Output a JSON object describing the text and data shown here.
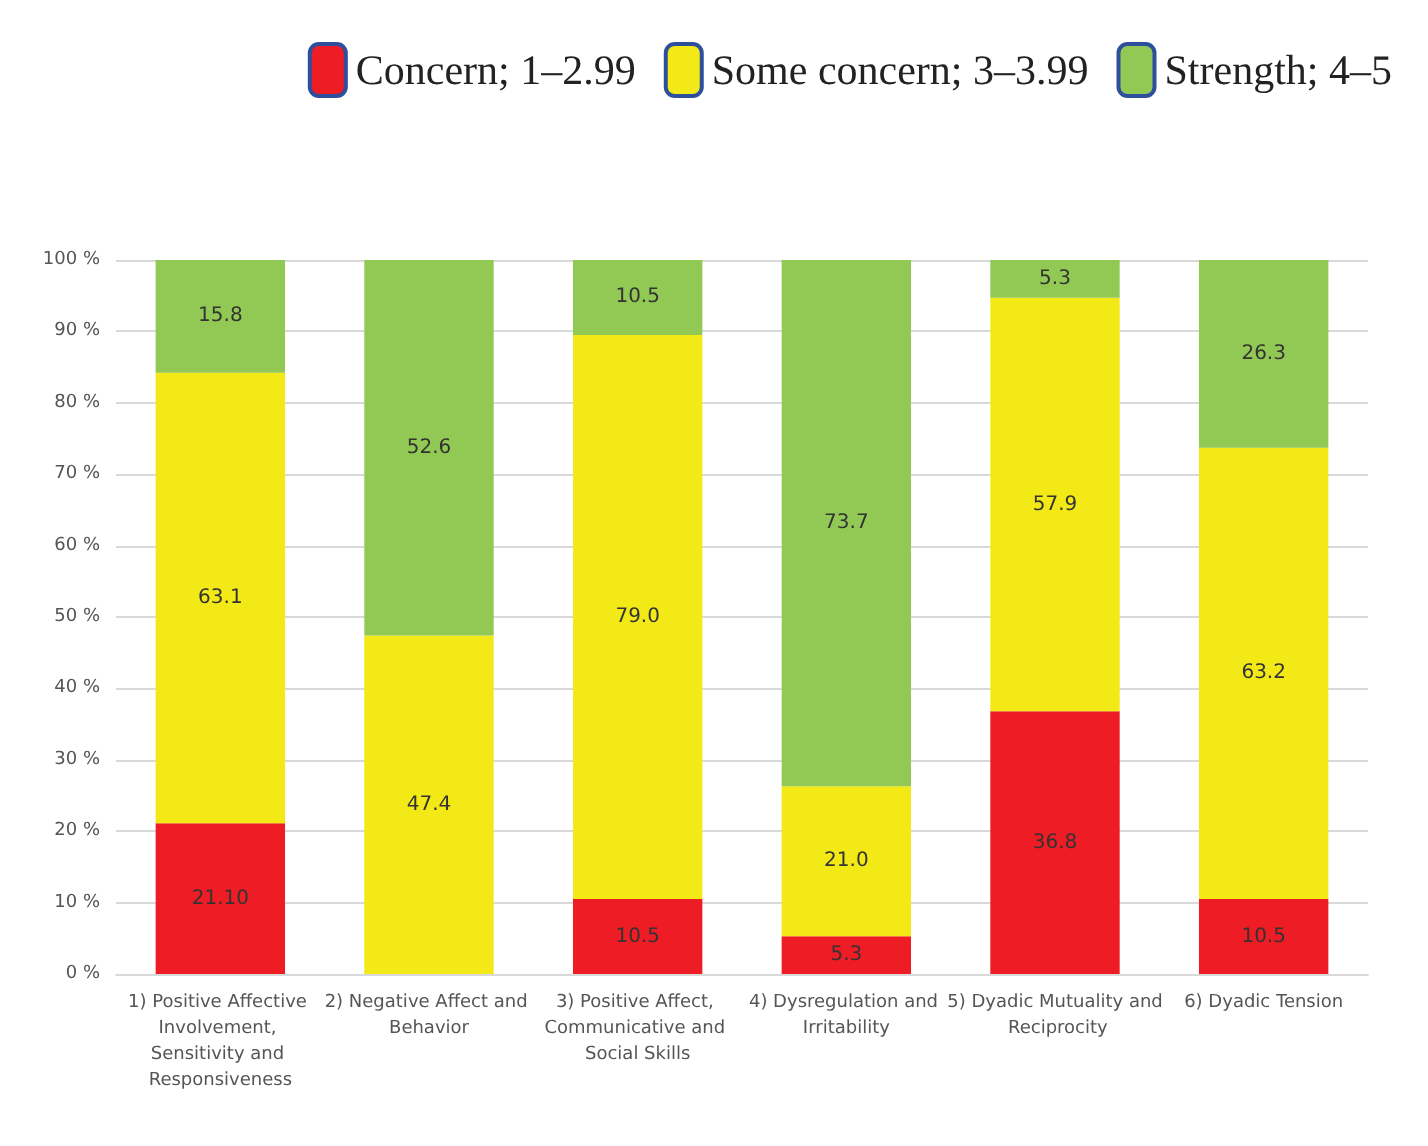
{
  "chart_data": {
    "type": "bar",
    "stacked": true,
    "categories": [
      "1) Positive Affective Involvement, Sensitivity and Responsiveness",
      "2) Negative Affect and Behavior",
      "3) Positive Affect, Communicative and Social Skills",
      "4) Dysregulation and Irritability",
      "5) Dyadic Mutuality and Reciprocity",
      "6) Dyadic Tension"
    ],
    "series": [
      {
        "name": "Concern; 1–2.99",
        "color": "#ee1c25",
        "values": [
          21.1,
          0,
          10.5,
          5.3,
          36.8,
          10.5
        ],
        "value_labels": [
          "21.10",
          null,
          "10.5",
          "5.3",
          "36.8",
          "10.5"
        ]
      },
      {
        "name": "Some concern; 3–3.99",
        "color": "#f2e916",
        "values": [
          63.1,
          47.4,
          79.0,
          21.0,
          57.9,
          63.2
        ],
        "value_labels": [
          "63.1",
          "47.4",
          "79.0",
          "21.0",
          "57.9",
          "63.2"
        ]
      },
      {
        "name": "Strength; 4–5",
        "color": "#92c854",
        "values": [
          15.8,
          52.6,
          10.5,
          73.7,
          5.3,
          26.3
        ],
        "value_labels": [
          "15.8",
          "52.6",
          "10.5",
          "73.7",
          "5.3",
          "26.3"
        ]
      }
    ],
    "ylim": [
      0,
      100
    ],
    "yticks": [
      {
        "value": 0,
        "label": "0 %"
      },
      {
        "value": 10,
        "label": "10 %"
      },
      {
        "value": 20,
        "label": "20 %"
      },
      {
        "value": 30,
        "label": "30 %"
      },
      {
        "value": 40,
        "label": "40 %"
      },
      {
        "value": 50,
        "label": "50 %"
      },
      {
        "value": 60,
        "label": "60 %"
      },
      {
        "value": 70,
        "label": "70 %"
      },
      {
        "value": 80,
        "label": "80 %"
      },
      {
        "value": 90,
        "label": "90 %"
      },
      {
        "value": 100,
        "label": "100 %"
      }
    ],
    "grid": "y",
    "legend": "top"
  }
}
